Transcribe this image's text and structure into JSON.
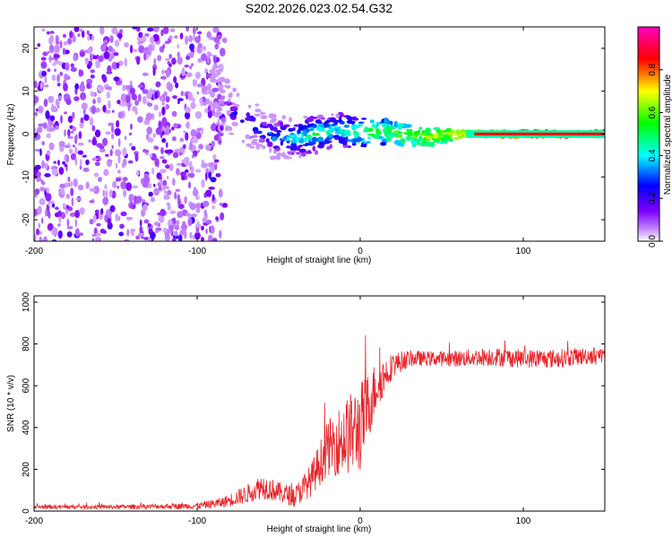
{
  "title": "S202.2026.023.02.54.G32",
  "chart_data": [
    {
      "type": "heatmap",
      "xlabel": "Height of straight line (km)",
      "ylabel": "Frequency (Hz)",
      "xlim": [
        -200,
        150
      ],
      "ylim": [
        -25,
        25
      ],
      "xticks": [
        -200,
        -100,
        0,
        100
      ],
      "yticks": [
        -20,
        -10,
        0,
        10,
        20
      ],
      "colorbar": {
        "label": "Normalized spectral amplitude",
        "range": [
          0,
          1
        ],
        "ticks": [
          "0.0",
          "0.2",
          "0.4",
          "0.6",
          "0.8"
        ],
        "colormap": [
          "#ffffff",
          "#8000ff",
          "#0000ff",
          "#00ffff",
          "#00ff00",
          "#ffff00",
          "#ff0000",
          "#ff00c0"
        ]
      },
      "features": [
        {
          "kind": "noise",
          "x_range": [
            -200,
            -95
          ],
          "freq_range": [
            -25,
            25
          ],
          "amplitude": 0.15
        },
        {
          "kind": "ridge",
          "x": [
            -95,
            -85,
            -75,
            -65,
            -55,
            -45,
            -35,
            -25,
            -15,
            -5,
            5,
            15,
            25,
            35,
            45,
            55,
            65,
            80,
            100,
            120,
            150
          ],
          "freq": [
            15,
            8,
            4,
            2,
            -0.5,
            -1,
            -0.5,
            0,
            1,
            0.5,
            0.5,
            0.5,
            0,
            -0.5,
            -0.5,
            0,
            0,
            0,
            0,
            0,
            0
          ],
          "amplitude": [
            0.15,
            0.2,
            0.3,
            0.35,
            0.4,
            0.45,
            0.5,
            0.55,
            0.45,
            0.55,
            0.6,
            0.6,
            0.65,
            0.65,
            0.7,
            0.7,
            0.75,
            0.85,
            0.9,
            0.9,
            0.9
          ]
        }
      ]
    },
    {
      "type": "line",
      "xlabel": "Height of straight line (km)",
      "ylabel": "SNR (10 * v/v)",
      "xlim": [
        -200,
        150
      ],
      "ylim": [
        0,
        1030
      ],
      "xticks": [
        -200,
        -100,
        0,
        100
      ],
      "yticks": [
        0,
        200,
        400,
        600,
        800,
        1000
      ],
      "color": "#e8252a",
      "series": [
        {
          "x": [
            -200,
            -150,
            -100,
            -85,
            -70,
            -60,
            -50,
            -40,
            -30,
            -20,
            -10,
            0,
            10,
            20,
            30,
            40,
            60,
            80,
            100,
            120,
            150
          ],
          "y": [
            20,
            20,
            25,
            40,
            80,
            120,
            90,
            70,
            150,
            300,
            350,
            400,
            600,
            700,
            730,
            730,
            730,
            740,
            730,
            730,
            750
          ],
          "noise": [
            10,
            10,
            15,
            25,
            45,
            60,
            50,
            50,
            80,
            130,
            180,
            220,
            120,
            60,
            40,
            35,
            40,
            45,
            45,
            45,
            40
          ]
        }
      ]
    }
  ]
}
